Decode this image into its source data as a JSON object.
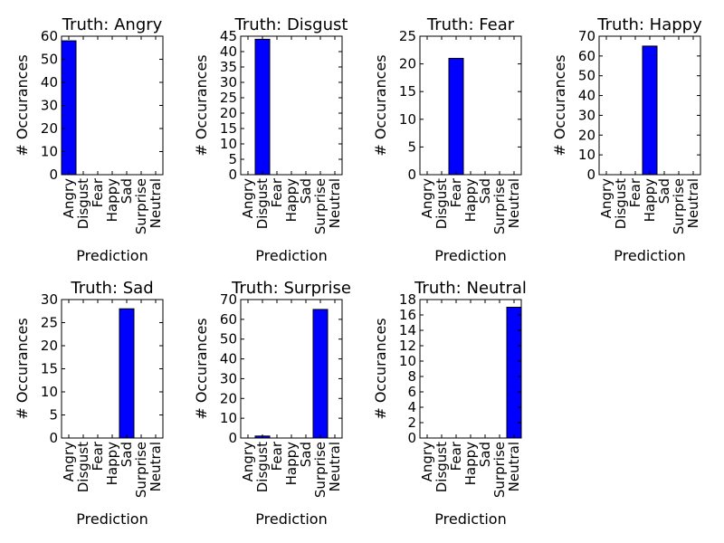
{
  "chart_data": [
    {
      "type": "bar",
      "title": "Truth: Angry",
      "xlabel": "Prediction",
      "ylabel": "# Occurances",
      "categories": [
        "Angry",
        "Disgust",
        "Fear",
        "Happy",
        "Sad",
        "Surprise",
        "Neutral"
      ],
      "values": [
        58,
        0,
        0,
        0,
        0,
        0,
        0
      ],
      "ylim": [
        0,
        60
      ],
      "yticks": [
        0,
        10,
        20,
        30,
        40,
        50,
        60
      ],
      "color": "#0000ff"
    },
    {
      "type": "bar",
      "title": "Truth: Disgust",
      "xlabel": "Prediction",
      "ylabel": "# Occurances",
      "categories": [
        "Angry",
        "Disgust",
        "Fear",
        "Happy",
        "Sad",
        "Surprise",
        "Neutral"
      ],
      "values": [
        0,
        44,
        0,
        0,
        0,
        0,
        0
      ],
      "ylim": [
        0,
        45
      ],
      "yticks": [
        0,
        5,
        10,
        15,
        20,
        25,
        30,
        35,
        40,
        45
      ],
      "color": "#0000ff"
    },
    {
      "type": "bar",
      "title": "Truth: Fear",
      "xlabel": "Prediction",
      "ylabel": "# Occurances",
      "categories": [
        "Angry",
        "Disgust",
        "Fear",
        "Happy",
        "Sad",
        "Surprise",
        "Neutral"
      ],
      "values": [
        0,
        0,
        21,
        0,
        0,
        0,
        0
      ],
      "ylim": [
        0,
        25
      ],
      "yticks": [
        0,
        5,
        10,
        15,
        20,
        25
      ],
      "color": "#0000ff"
    },
    {
      "type": "bar",
      "title": "Truth: Happy",
      "xlabel": "Prediction",
      "ylabel": "# Occurances",
      "categories": [
        "Angry",
        "Disgust",
        "Fear",
        "Happy",
        "Sad",
        "Surprise",
        "Neutral"
      ],
      "values": [
        0,
        0,
        0,
        65,
        0,
        0,
        0
      ],
      "ylim": [
        0,
        70
      ],
      "yticks": [
        0,
        10,
        20,
        30,
        40,
        50,
        60,
        70
      ],
      "color": "#0000ff"
    },
    {
      "type": "bar",
      "title": "Truth: Sad",
      "xlabel": "Prediction",
      "ylabel": "# Occurances",
      "categories": [
        "Angry",
        "Disgust",
        "Fear",
        "Happy",
        "Sad",
        "Surprise",
        "Neutral"
      ],
      "values": [
        0,
        0,
        0,
        0,
        28,
        0,
        0
      ],
      "ylim": [
        0,
        30
      ],
      "yticks": [
        0,
        5,
        10,
        15,
        20,
        25,
        30
      ],
      "color": "#0000ff"
    },
    {
      "type": "bar",
      "title": "Truth: Surprise",
      "xlabel": "Prediction",
      "ylabel": "# Occurances",
      "categories": [
        "Angry",
        "Disgust",
        "Fear",
        "Happy",
        "Sad",
        "Surprise",
        "Neutral"
      ],
      "values": [
        0,
        1,
        0,
        0,
        0,
        65,
        0
      ],
      "ylim": [
        0,
        70
      ],
      "yticks": [
        0,
        10,
        20,
        30,
        40,
        50,
        60,
        70
      ],
      "color": "#0000ff"
    },
    {
      "type": "bar",
      "title": "Truth: Neutral",
      "xlabel": "Prediction",
      "ylabel": "# Occurances",
      "categories": [
        "Angry",
        "Disgust",
        "Fear",
        "Happy",
        "Sad",
        "Surprise",
        "Neutral"
      ],
      "values": [
        0,
        0,
        0,
        0,
        0,
        0,
        17
      ],
      "ylim": [
        0,
        18
      ],
      "yticks": [
        0,
        2,
        4,
        6,
        8,
        10,
        12,
        14,
        16,
        18
      ],
      "color": "#0000ff"
    }
  ]
}
